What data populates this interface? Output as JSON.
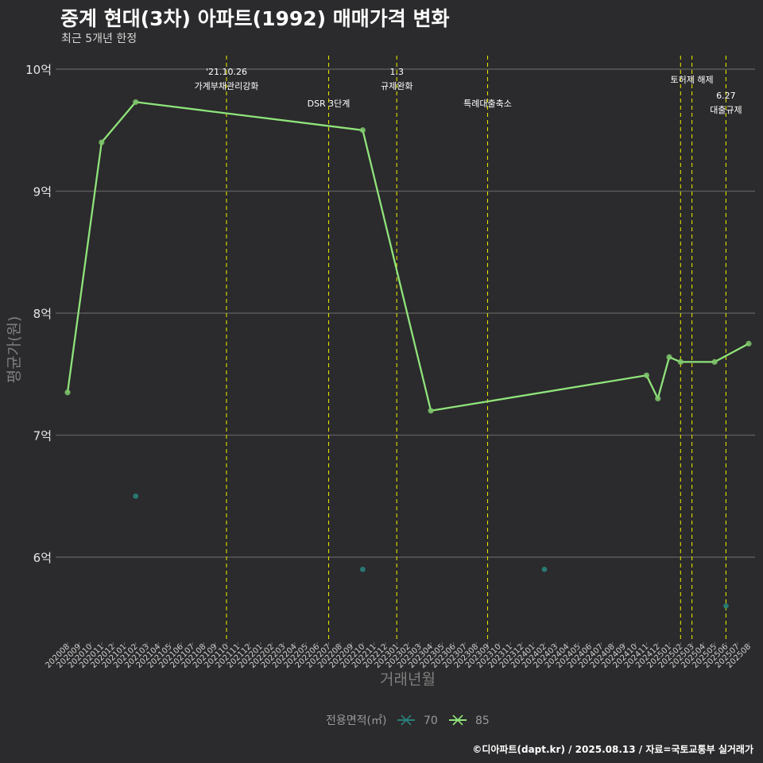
{
  "title": "중계 현대(3차) 아파트(1992) 매매가격 변화",
  "subtitle": "최근 5개년 한정",
  "caption": "©디아파트(dapt.kr) / 2025.08.13 / 자료=국토교통부 실거래가",
  "colors": {
    "background": "#2b2a2c",
    "grid": "#5a5a5a",
    "event_line": "#e0e000",
    "series_85": "#8fe37a",
    "series_70": "#2a7f7a"
  },
  "chart_data": {
    "type": "line",
    "title": "중계 현대(3차) 아파트(1992) 매매가격 변화",
    "xlabel": "거래년월",
    "ylabel": "평균가(원)",
    "ylim": [
      5.4,
      10.1
    ],
    "y_ticks": [
      {
        "value": 6,
        "label": "6억"
      },
      {
        "value": 7,
        "label": "7억"
      },
      {
        "value": 8,
        "label": "8억"
      },
      {
        "value": 9,
        "label": "9억"
      },
      {
        "value": 10,
        "label": "10억"
      }
    ],
    "categories": [
      "202008",
      "202009",
      "202010",
      "202011",
      "202012",
      "202101",
      "202102",
      "202103",
      "202104",
      "202105",
      "202106",
      "202107",
      "202108",
      "202109",
      "202110",
      "202111",
      "202112",
      "202201",
      "202202",
      "202203",
      "202204",
      "202205",
      "202206",
      "202207",
      "202208",
      "202209",
      "202210",
      "202211",
      "202212",
      "202301",
      "202302",
      "202303",
      "202304",
      "202305",
      "202306",
      "202307",
      "202308",
      "202309",
      "202310",
      "202311",
      "202312",
      "202401",
      "202402",
      "202403",
      "202404",
      "202405",
      "202406",
      "202407",
      "202408",
      "202409",
      "202410",
      "202411",
      "202412",
      "202501",
      "202502",
      "202503",
      "202504",
      "202505",
      "202506",
      "202507",
      "202508"
    ],
    "legend_title": "전용면적(㎡)",
    "series": [
      {
        "name": "70",
        "style": "points",
        "points": [
          {
            "x": "202102",
            "y": 6.5
          },
          {
            "x": "202210",
            "y": 5.9
          },
          {
            "x": "202402",
            "y": 5.9
          },
          {
            "x": "202506",
            "y": 5.6
          }
        ]
      },
      {
        "name": "85",
        "style": "line",
        "points": [
          {
            "x": "202008",
            "y": 7.35
          },
          {
            "x": "202011",
            "y": 9.4
          },
          {
            "x": "202102",
            "y": 9.73
          },
          {
            "x": "202210",
            "y": 9.5
          },
          {
            "x": "202304",
            "y": 7.2
          },
          {
            "x": "202411",
            "y": 7.49
          },
          {
            "x": "202412",
            "y": 7.3
          },
          {
            "x": "202501",
            "y": 7.64
          },
          {
            "x": "202502",
            "y": 7.6
          },
          {
            "x": "202505",
            "y": 7.6
          },
          {
            "x": "202508",
            "y": 7.75
          }
        ]
      }
    ],
    "events": [
      {
        "x": "202110",
        "lines": [
          "'21.10.26",
          "가계부채관리강화"
        ],
        "level": 0
      },
      {
        "x": "202207",
        "lines": [
          "DSR 3단계"
        ],
        "level": 2
      },
      {
        "x": "202301",
        "lines": [
          "1.3",
          "규제완화"
        ],
        "level": 0
      },
      {
        "x": "202309",
        "lines": [
          "특례대출축소"
        ],
        "level": 2
      },
      {
        "x": "202502",
        "lines": [],
        "level": 0
      },
      {
        "x": "202503",
        "lines": [
          "토허제 해제"
        ],
        "level": 1
      },
      {
        "x": "202506",
        "lines": [
          "6.27",
          "대출규제"
        ],
        "level": 3
      }
    ]
  }
}
